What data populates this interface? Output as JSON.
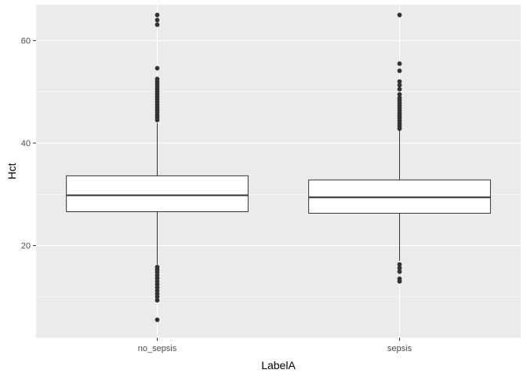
{
  "chart_data": {
    "type": "boxplot",
    "title": "",
    "xlabel": "LabelA",
    "ylabel": "Hct",
    "ylim": [
      2.0,
      67.0
    ],
    "y_ticks": [
      20,
      40,
      60
    ],
    "y_minor_ticks": [
      10,
      30,
      50
    ],
    "grid": true,
    "legend": "none",
    "colors": {
      "panel": "#ebebeb",
      "grid": "#ffffff",
      "box_fill": "#ffffff",
      "stroke": "#333333",
      "outlier": "#333333"
    },
    "categories": [
      "no_sepsis",
      "sepsis"
    ],
    "boxes": [
      {
        "category": "no_sepsis",
        "lower_whisker": 16.3,
        "q1": 26.6,
        "median": 29.8,
        "q3": 33.6,
        "upper_whisker": 43.9,
        "outliers_high": [
          44.5,
          45.0,
          45.5,
          46.0,
          46.5,
          47.0,
          47.5,
          48.0,
          48.5,
          49.0,
          49.5,
          50.0,
          50.5,
          51.0,
          51.5,
          52.0,
          52.5,
          54.6,
          63.1,
          64.0,
          65.0
        ],
        "outliers_low": [
          5.5,
          9.3,
          10.0,
          10.6,
          11.2,
          11.8,
          12.4,
          13.0,
          13.6,
          14.2,
          14.8,
          15.3,
          15.8
        ]
      },
      {
        "category": "sepsis",
        "lower_whisker": 17.0,
        "q1": 26.3,
        "median": 29.4,
        "q3": 32.8,
        "upper_whisker": 42.4,
        "outliers_high": [
          42.8,
          43.3,
          43.8,
          44.3,
          44.8,
          45.3,
          45.8,
          46.3,
          46.8,
          47.3,
          47.8,
          48.3,
          48.8,
          49.5,
          50.5,
          51.3,
          52.0,
          54.1,
          55.5,
          65.0
        ],
        "outliers_low": [
          16.3,
          15.6,
          14.9,
          13.5,
          13.0
        ]
      }
    ]
  }
}
